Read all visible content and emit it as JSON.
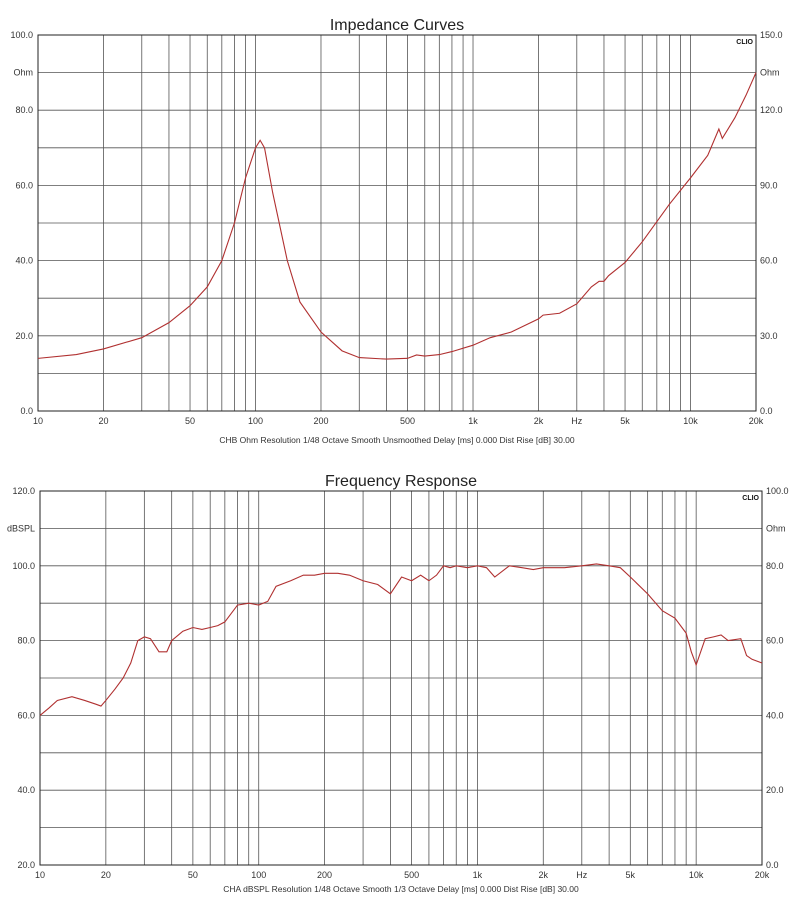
{
  "chart_data": [
    {
      "type": "line",
      "title": "Impedance Curves",
      "brand": "CLIO",
      "footer": "CHB Ohm Resolution 1/48 Octave Smooth Unsmoothed Delay [ms] 0.000 Dist Rise [dB] 30.00",
      "x_scale": "log",
      "xlim": [
        10,
        20000
      ],
      "x_unit": "Hz",
      "x_tick_labels": [
        {
          "value": 10,
          "label": "10"
        },
        {
          "value": 20,
          "label": "20"
        },
        {
          "value": 50,
          "label": "50"
        },
        {
          "value": 100,
          "label": "100"
        },
        {
          "value": 200,
          "label": "200"
        },
        {
          "value": 500,
          "label": "500"
        },
        {
          "value": 1000,
          "label": "1k"
        },
        {
          "value": 2000,
          "label": "2k"
        },
        {
          "value": 5000,
          "label": "5k"
        },
        {
          "value": 10000,
          "label": "10k"
        },
        {
          "value": 20000,
          "label": "20k"
        }
      ],
      "left_axis": {
        "unit": "Ohm",
        "ylim": [
          0,
          100
        ],
        "tick_labels": [
          "0.0",
          "20.0",
          "40.0",
          "60.0",
          "80.0",
          "100.0"
        ]
      },
      "right_axis": {
        "unit": "Ohm",
        "ylim": [
          0,
          150
        ],
        "tick_labels": [
          "0.0",
          "30.0",
          "60.0",
          "90.0",
          "120.0",
          "150.0"
        ]
      },
      "grid": true,
      "series": [
        {
          "color": "#b03030",
          "axis": "left",
          "x": [
            10,
            15,
            20,
            30,
            40,
            50,
            60,
            70,
            80,
            90,
            100,
            105,
            110,
            120,
            140,
            160,
            200,
            250,
            300,
            400,
            500,
            550,
            600,
            700,
            800,
            1000,
            1200,
            1500,
            2000,
            2100,
            2500,
            3000,
            3500,
            3800,
            4000,
            4200,
            5000,
            6000,
            8000,
            10000,
            12000,
            13500,
            14000,
            16000,
            18000,
            20000
          ],
          "y": [
            14,
            15,
            16.5,
            19.5,
            23.5,
            28,
            33,
            40,
            50,
            62,
            70,
            72,
            70,
            58,
            40,
            29,
            21,
            16,
            14.2,
            13.8,
            14,
            14.9,
            14.6,
            15,
            15.8,
            17.5,
            19.5,
            21,
            24.5,
            25.5,
            26,
            28.5,
            33,
            34.5,
            34.5,
            36,
            39.5,
            45,
            55,
            62,
            68,
            75,
            72.5,
            78,
            84,
            90
          ]
        }
      ]
    },
    {
      "type": "line",
      "title": "Frequency Response",
      "brand": "CLIO",
      "footer": "CHA dBSPL Resolution 1/48 Octave Smooth 1/3 Octave Delay [ms] 0.000 Dist Rise [dB] 30.00",
      "x_scale": "log",
      "xlim": [
        10,
        20000
      ],
      "x_unit": "Hz",
      "x_tick_labels": [
        {
          "value": 10,
          "label": "10"
        },
        {
          "value": 20,
          "label": "20"
        },
        {
          "value": 50,
          "label": "50"
        },
        {
          "value": 100,
          "label": "100"
        },
        {
          "value": 200,
          "label": "200"
        },
        {
          "value": 500,
          "label": "500"
        },
        {
          "value": 1000,
          "label": "1k"
        },
        {
          "value": 2000,
          "label": "2k"
        },
        {
          "value": 5000,
          "label": "5k"
        },
        {
          "value": 10000,
          "label": "10k"
        },
        {
          "value": 20000,
          "label": "20k"
        }
      ],
      "left_axis": {
        "unit": "dBSPL",
        "ylim": [
          20,
          120
        ],
        "tick_labels": [
          "20.0",
          "40.0",
          "60.0",
          "80.0",
          "100.0",
          "120.0"
        ]
      },
      "right_axis": {
        "unit": "Ohm",
        "ylim": [
          0,
          100
        ],
        "tick_labels": [
          "0.0",
          "20.0",
          "40.0",
          "60.0",
          "80.0",
          "100.0"
        ]
      },
      "grid": true,
      "series": [
        {
          "color": "#b03030",
          "axis": "left",
          "x": [
            10,
            11,
            12,
            14,
            16,
            18,
            19,
            20,
            22,
            24,
            26,
            28,
            30,
            32,
            35,
            38,
            40,
            45,
            50,
            55,
            60,
            65,
            70,
            80,
            90,
            100,
            110,
            120,
            140,
            160,
            180,
            200,
            230,
            260,
            300,
            350,
            400,
            450,
            500,
            550,
            600,
            650,
            700,
            750,
            800,
            900,
            1000,
            1100,
            1200,
            1400,
            1600,
            1800,
            2000,
            2500,
            3000,
            3500,
            4000,
            4500,
            5000,
            6000,
            7000,
            8000,
            9000,
            9500,
            10000,
            11000,
            12000,
            13000,
            14000,
            16000,
            17000,
            18000,
            20000
          ],
          "y": [
            60,
            62,
            64,
            65,
            64,
            63,
            62.5,
            64,
            67,
            70,
            74,
            80,
            81,
            80.5,
            77,
            77,
            80,
            82.5,
            83.5,
            83,
            83.5,
            84,
            85,
            89.5,
            90,
            89.5,
            90.5,
            94.5,
            96,
            97.5,
            97.5,
            98,
            98,
            97.5,
            96,
            95,
            92.5,
            97,
            96,
            97.5,
            96,
            97.5,
            100,
            99.5,
            100,
            99.5,
            100,
            99.5,
            97,
            100,
            99.5,
            99,
            99.5,
            99.5,
            100,
            100.5,
            100,
            99.5,
            97,
            92.5,
            88,
            86,
            82,
            77,
            73.5,
            80.5,
            81,
            81.5,
            80,
            80.5,
            76,
            75,
            74
          ]
        }
      ]
    }
  ]
}
